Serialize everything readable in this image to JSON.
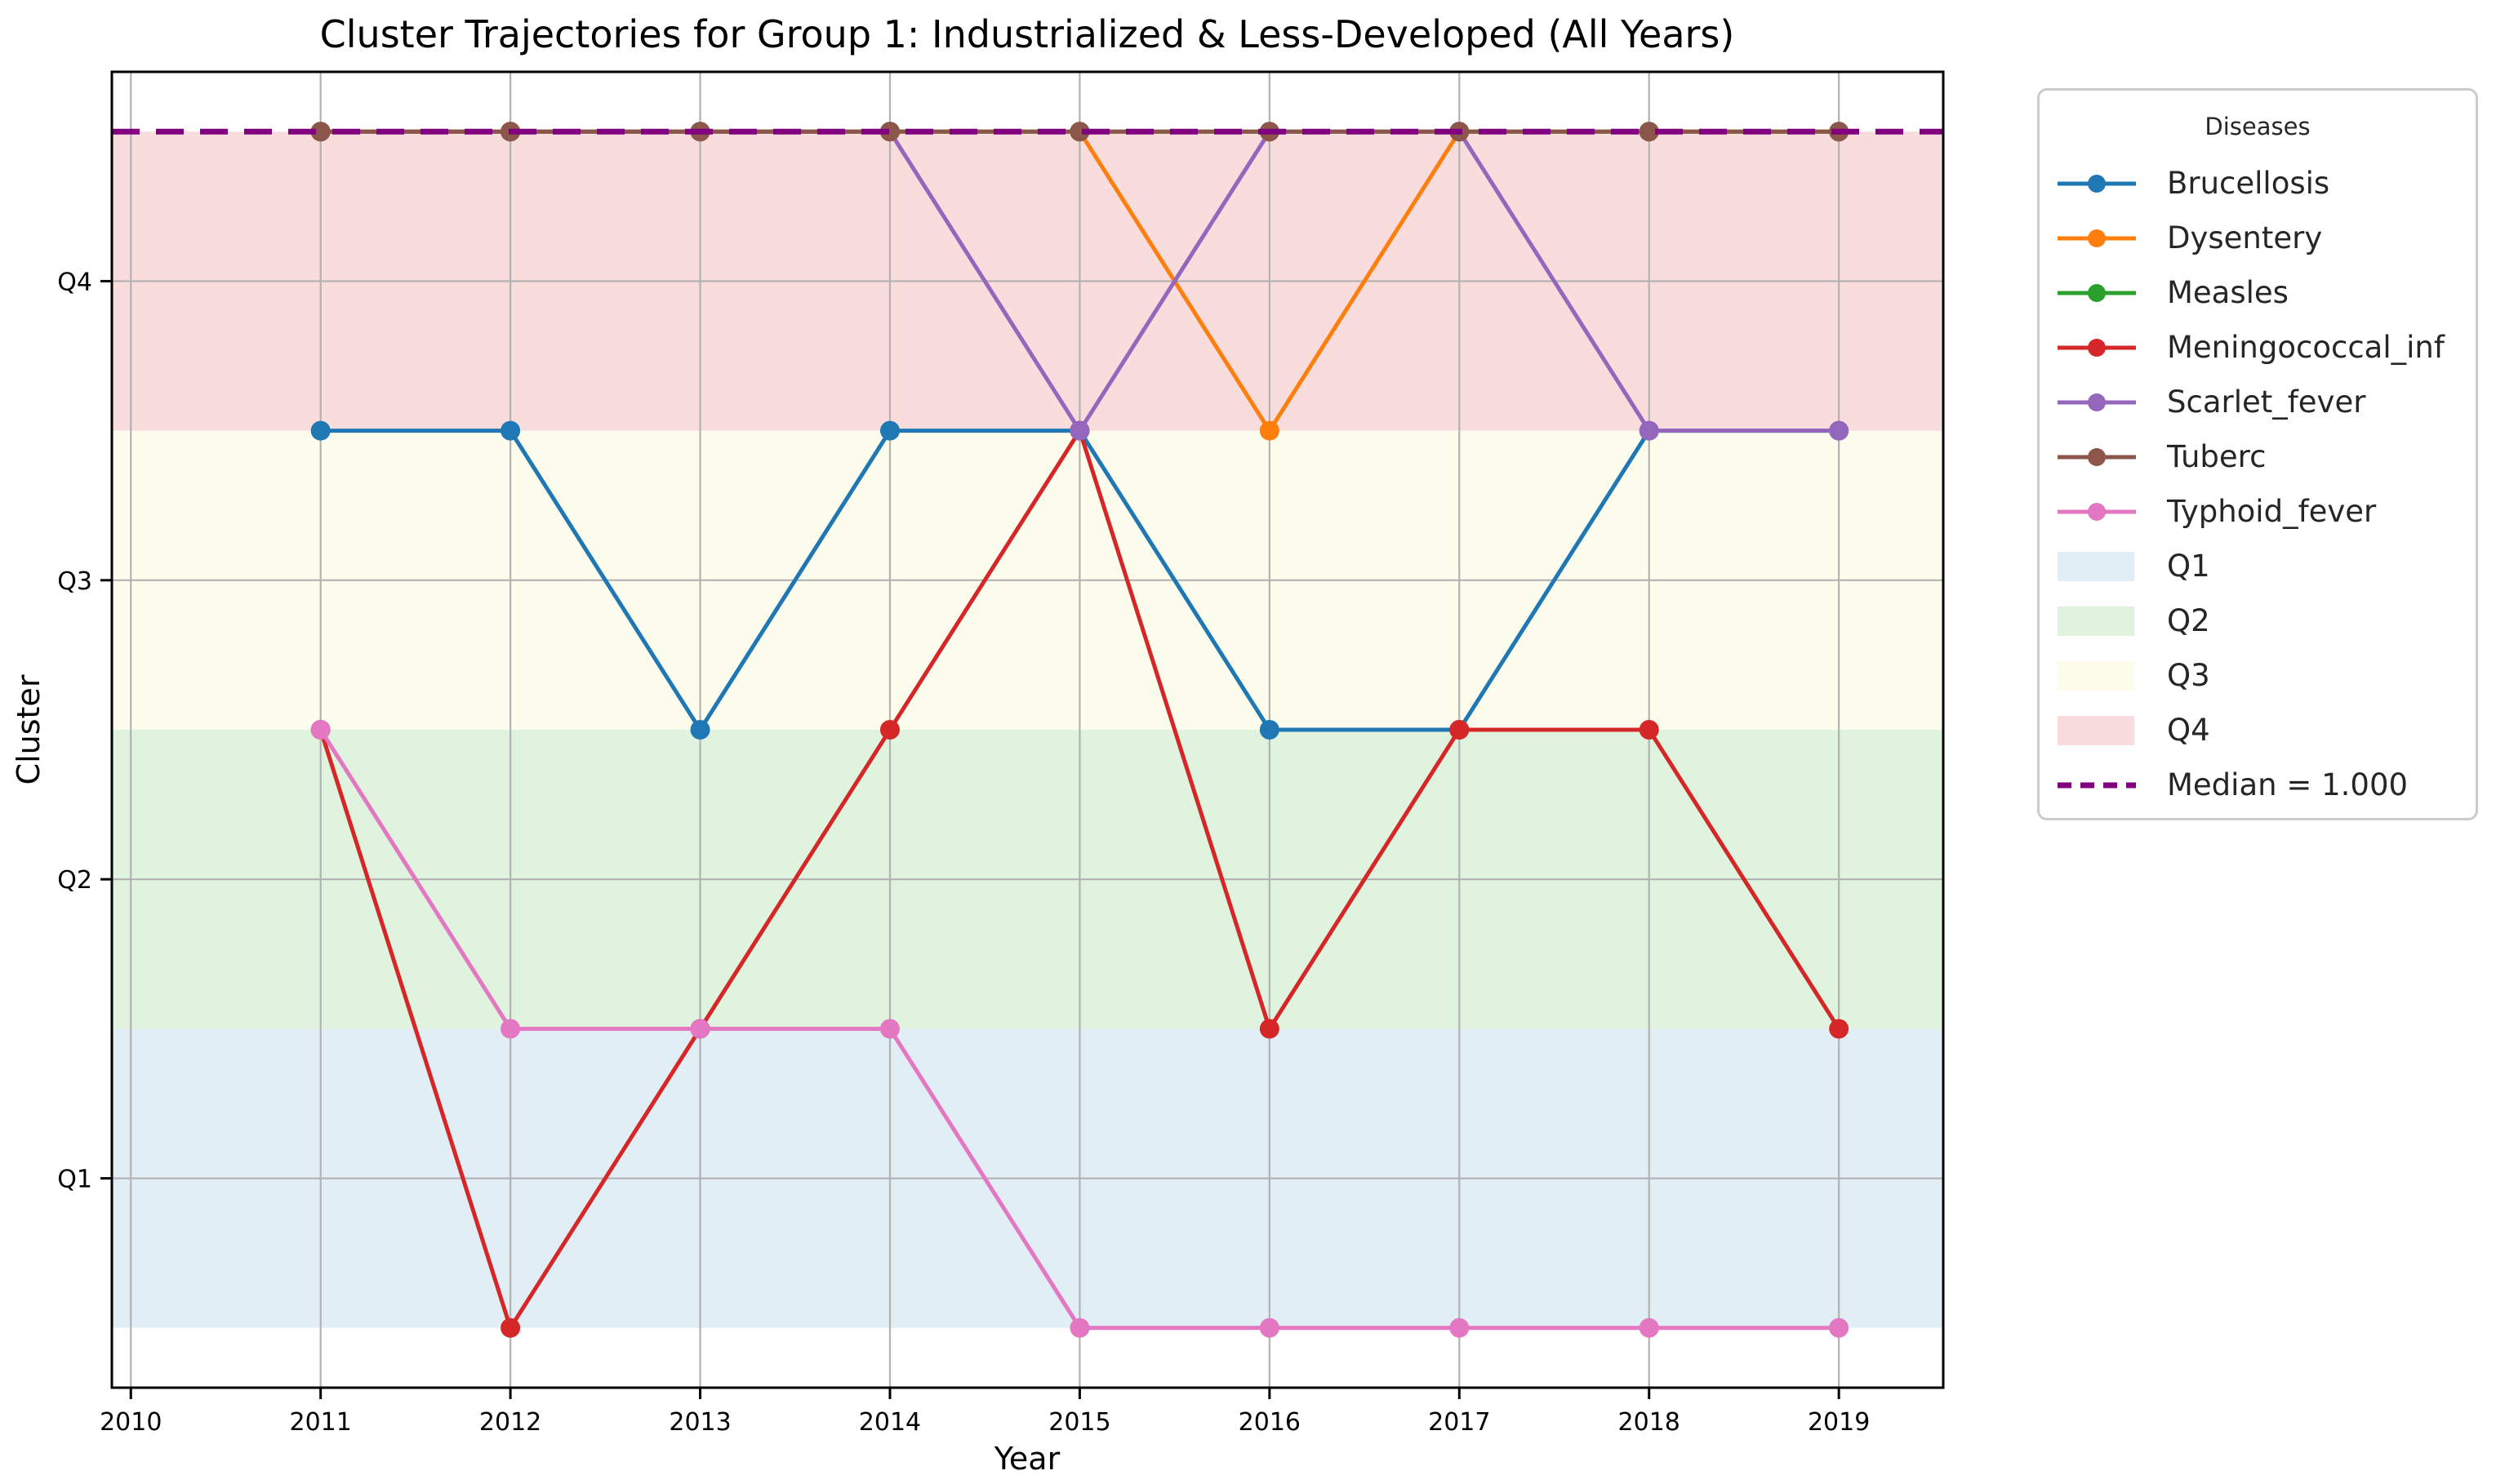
{
  "title": "Cluster Trajectories for Group 1: Industrialized & Less-Developed (All Years)",
  "xlabel": "Year",
  "ylabel": "Cluster",
  "legend": {
    "title": "Diseases",
    "entries": [
      {
        "label": "Brucellosis",
        "type": "line",
        "color": "#1f77b4"
      },
      {
        "label": "Dysentery",
        "type": "line",
        "color": "#ff7f0e"
      },
      {
        "label": "Measles",
        "type": "line",
        "color": "#2ca02c"
      },
      {
        "label": "Meningococcal_inf",
        "type": "line",
        "color": "#d62728"
      },
      {
        "label": "Scarlet_fever",
        "type": "line",
        "color": "#9467bd"
      },
      {
        "label": "Tuberc",
        "type": "line",
        "color": "#8c564b"
      },
      {
        "label": "Typhoid_fever",
        "type": "line",
        "color": "#e377c2"
      },
      {
        "label": "Q1",
        "type": "patch",
        "color": "#e2eef6"
      },
      {
        "label": "Q2",
        "type": "patch",
        "color": "#e0f3df"
      },
      {
        "label": "Q3",
        "type": "patch",
        "color": "#fdfdec"
      },
      {
        "label": "Q4",
        "type": "patch",
        "color": "#f9dcdc"
      },
      {
        "label": "Median = 1.000",
        "type": "dash",
        "color": "#800080"
      }
    ]
  },
  "chart_data": {
    "type": "line",
    "title": "Cluster Trajectories for Group 1: Industrialized & Less-Developed (All Years)",
    "xlabel": "Year",
    "ylabel": "Cluster",
    "x": [
      2011,
      2012,
      2013,
      2014,
      2015,
      2016,
      2017,
      2018,
      2019
    ],
    "x_ticks": [
      2010,
      2011,
      2012,
      2013,
      2014,
      2015,
      2016,
      2017,
      2018,
      2019
    ],
    "y_ticks": [
      {
        "value": 1,
        "label": "Q1"
      },
      {
        "value": 2,
        "label": "Q2"
      },
      {
        "value": 3,
        "label": "Q3"
      },
      {
        "value": 4,
        "label": "Q4"
      }
    ],
    "xlim": [
      2009.9,
      2019.55
    ],
    "ylim": [
      0.3,
      4.7
    ],
    "grid": true,
    "legend_position": "outside-right",
    "bands": [
      {
        "label": "Q1",
        "from": 0.5,
        "to": 1.5,
        "color": "#e2eef6"
      },
      {
        "label": "Q2",
        "from": 1.5,
        "to": 2.5,
        "color": "#e0f3df"
      },
      {
        "label": "Q3",
        "from": 2.5,
        "to": 3.5,
        "color": "#fdfdee"
      },
      {
        "label": "Q4",
        "from": 3.5,
        "to": 4.5,
        "color": "#f9dcdc"
      }
    ],
    "median": {
      "y": 4.5,
      "label": "Median = 1.000",
      "color": "#800080"
    },
    "series": [
      {
        "name": "Brucellosis",
        "color": "#1f77b4",
        "values": [
          3.5,
          3.5,
          2.5,
          3.5,
          3.5,
          2.5,
          2.5,
          3.5,
          3.5
        ]
      },
      {
        "name": "Dysentery",
        "color": "#ff7f0e",
        "values": [
          4.5,
          4.5,
          4.5,
          4.5,
          4.5,
          3.5,
          4.5,
          4.5,
          4.5
        ]
      },
      {
        "name": "Measles",
        "color": "#2ca02c",
        "values": [
          4.5,
          4.5,
          4.5,
          4.5,
          4.5,
          4.5,
          4.5,
          4.5,
          4.5
        ]
      },
      {
        "name": "Meningococcal_inf",
        "color": "#d62728",
        "values": [
          2.5,
          0.5,
          1.5,
          2.5,
          3.5,
          1.5,
          2.5,
          2.5,
          1.5
        ]
      },
      {
        "name": "Scarlet_fever",
        "color": "#9467bd",
        "values": [
          4.5,
          4.5,
          4.5,
          4.5,
          3.5,
          4.5,
          4.5,
          3.5,
          3.5
        ]
      },
      {
        "name": "Tuberc",
        "color": "#8c564b",
        "values": [
          4.5,
          4.5,
          4.5,
          4.5,
          4.5,
          4.5,
          4.5,
          4.5,
          4.5
        ]
      },
      {
        "name": "Typhoid_fever",
        "color": "#e377c2",
        "values": [
          2.5,
          1.5,
          1.5,
          1.5,
          0.5,
          0.5,
          0.5,
          0.5,
          0.5
        ]
      }
    ]
  }
}
